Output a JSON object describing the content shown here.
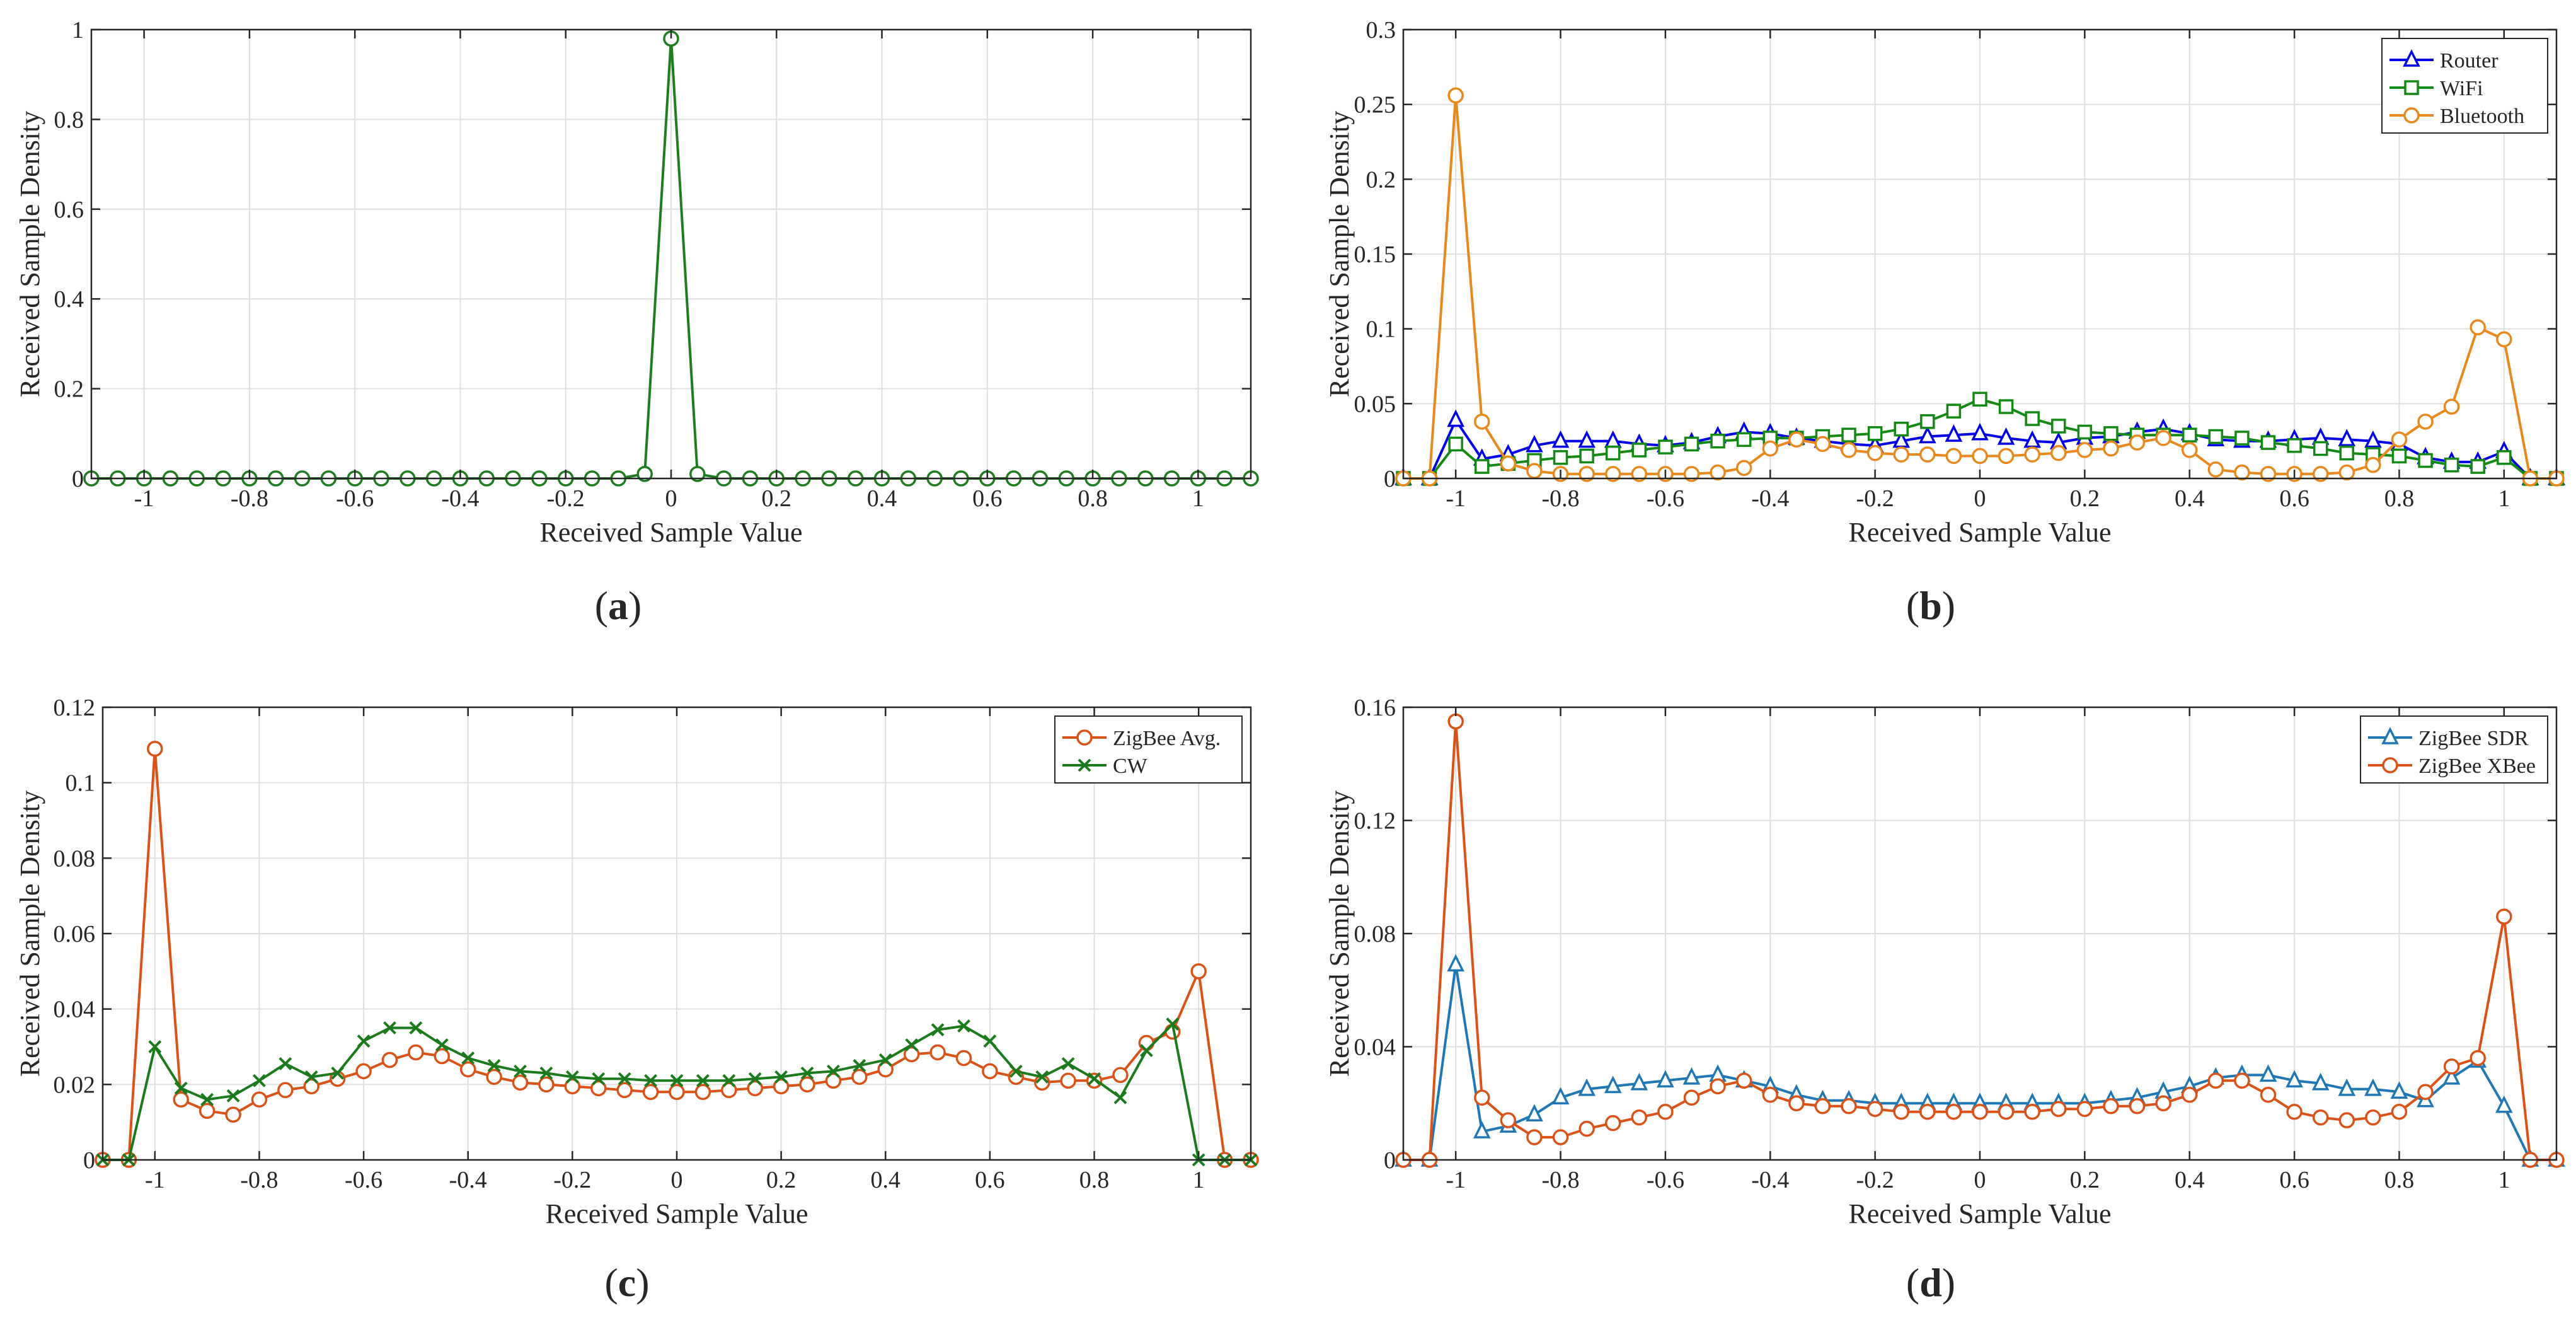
{
  "chart_data": [
    {
      "type": "line",
      "panel_label": "a",
      "xlabel": "Received Sample Value",
      "ylabel": "Received Sample Density",
      "xlim": [
        -1.1,
        1.1
      ],
      "ylim": [
        0,
        1
      ],
      "xticks": [
        -1,
        -0.8,
        -0.6,
        -0.4,
        -0.2,
        0,
        0.2,
        0.4,
        0.6,
        0.8,
        1
      ],
      "xtick_labels": [
        "-1",
        "-0.8",
        "-0.6",
        "-0.4",
        "-0.2",
        "0",
        "0.2",
        "0.4",
        "0.6",
        "0.8",
        "1"
      ],
      "yticks": [
        0,
        0.2,
        0.4,
        0.6,
        0.8,
        1
      ],
      "ytick_labels": [
        "0",
        "0.2",
        "0.4",
        "0.6",
        "0.8",
        "1"
      ],
      "grid": true,
      "legend": null,
      "x": [
        -1.1,
        -1.05,
        -1.0,
        -0.95,
        -0.9,
        -0.85,
        -0.8,
        -0.75,
        -0.7,
        -0.65,
        -0.6,
        -0.55,
        -0.5,
        -0.45,
        -0.4,
        -0.35,
        -0.3,
        -0.25,
        -0.2,
        -0.15,
        -0.1,
        -0.05,
        0.0,
        0.05,
        0.1,
        0.15,
        0.2,
        0.25,
        0.3,
        0.35,
        0.4,
        0.45,
        0.5,
        0.55,
        0.6,
        0.65,
        0.7,
        0.75,
        0.8,
        0.85,
        0.9,
        0.95,
        1.0,
        1.05,
        1.1
      ],
      "series": [
        {
          "name": "",
          "color": "#1e7d1e",
          "marker": "circle",
          "values": [
            0,
            0,
            0,
            0,
            0,
            0,
            0,
            0,
            0,
            0,
            0,
            0,
            0,
            0,
            0,
            0,
            0,
            0,
            0,
            0,
            0,
            0.01,
            0.98,
            0.01,
            0,
            0,
            0,
            0,
            0,
            0,
            0,
            0,
            0,
            0,
            0,
            0,
            0,
            0,
            0,
            0,
            0,
            0,
            0,
            0,
            0
          ]
        }
      ]
    },
    {
      "type": "line",
      "panel_label": "b",
      "xlabel": "Received Sample Value",
      "ylabel": "Received Sample Density",
      "xlim": [
        -1.1,
        1.1
      ],
      "ylim": [
        0,
        0.3
      ],
      "xticks": [
        -1,
        -0.8,
        -0.6,
        -0.4,
        -0.2,
        0,
        0.2,
        0.4,
        0.6,
        0.8,
        1
      ],
      "xtick_labels": [
        "-1",
        "-0.8",
        "-0.6",
        "-0.4",
        "-0.2",
        "0",
        "0.2",
        "0.4",
        "0.6",
        "0.8",
        "1"
      ],
      "yticks": [
        0,
        0.05,
        0.1,
        0.15,
        0.2,
        0.25,
        0.3
      ],
      "ytick_labels": [
        "0",
        "0.05",
        "0.1",
        "0.15",
        "0.2",
        "0.25",
        "0.3"
      ],
      "grid": true,
      "legend": "top-right",
      "x": [
        -1.1,
        -1.05,
        -1.0,
        -0.95,
        -0.9,
        -0.85,
        -0.8,
        -0.75,
        -0.7,
        -0.65,
        -0.6,
        -0.55,
        -0.5,
        -0.45,
        -0.4,
        -0.35,
        -0.3,
        -0.25,
        -0.2,
        -0.15,
        -0.1,
        -0.05,
        0.0,
        0.05,
        0.1,
        0.15,
        0.2,
        0.25,
        0.3,
        0.35,
        0.4,
        0.45,
        0.5,
        0.55,
        0.6,
        0.65,
        0.7,
        0.75,
        0.8,
        0.85,
        0.9,
        0.95,
        1.0,
        1.05,
        1.1
      ],
      "series": [
        {
          "name": "Router",
          "color": "#0000e6",
          "marker": "triangle",
          "values": [
            0,
            0,
            0.039,
            0.013,
            0.016,
            0.022,
            0.025,
            0.025,
            0.025,
            0.023,
            0.022,
            0.024,
            0.028,
            0.031,
            0.03,
            0.027,
            0.025,
            0.023,
            0.022,
            0.025,
            0.028,
            0.029,
            0.03,
            0.027,
            0.025,
            0.024,
            0.027,
            0.028,
            0.031,
            0.033,
            0.03,
            0.026,
            0.025,
            0.025,
            0.026,
            0.027,
            0.026,
            0.025,
            0.023,
            0.014,
            0.011,
            0.011,
            0.018,
            0,
            0
          ]
        },
        {
          "name": "WiFi",
          "color": "#138a13",
          "marker": "square",
          "values": [
            0,
            0,
            0.023,
            0.008,
            0.01,
            0.012,
            0.014,
            0.015,
            0.017,
            0.019,
            0.021,
            0.023,
            0.025,
            0.026,
            0.027,
            0.027,
            0.028,
            0.029,
            0.03,
            0.033,
            0.038,
            0.045,
            0.053,
            0.048,
            0.04,
            0.035,
            0.031,
            0.03,
            0.029,
            0.029,
            0.029,
            0.028,
            0.027,
            0.024,
            0.022,
            0.02,
            0.017,
            0.016,
            0.015,
            0.012,
            0.009,
            0.008,
            0.014,
            0,
            0
          ]
        },
        {
          "name": "Bluetooth",
          "color": "#e8891e",
          "marker": "circle",
          "values": [
            0,
            0,
            0.256,
            0.038,
            0.01,
            0.005,
            0.003,
            0.003,
            0.003,
            0.003,
            0.003,
            0.003,
            0.004,
            0.007,
            0.02,
            0.026,
            0.023,
            0.019,
            0.017,
            0.016,
            0.016,
            0.015,
            0.015,
            0.015,
            0.016,
            0.017,
            0.019,
            0.02,
            0.024,
            0.027,
            0.019,
            0.006,
            0.004,
            0.003,
            0.003,
            0.003,
            0.004,
            0.009,
            0.026,
            0.038,
            0.048,
            0.101,
            0.093,
            0,
            0
          ]
        }
      ]
    },
    {
      "type": "line",
      "panel_label": "c",
      "xlabel": "Received Sample Value",
      "ylabel": "Received Sample Density",
      "xlim": [
        -1.1,
        1.1
      ],
      "ylim": [
        0,
        0.12
      ],
      "xticks": [
        -1,
        -0.8,
        -0.6,
        -0.4,
        -0.2,
        0,
        0.2,
        0.4,
        0.6,
        0.8,
        1
      ],
      "xtick_labels": [
        "-1",
        "-0.8",
        "-0.6",
        "-0.4",
        "-0.2",
        "0",
        "0.2",
        "0.4",
        "0.6",
        "0.8",
        "1"
      ],
      "yticks": [
        0,
        0.02,
        0.04,
        0.06,
        0.08,
        0.1,
        0.12
      ],
      "ytick_labels": [
        "0",
        "0.02",
        "0.04",
        "0.06",
        "0.08",
        "0.1",
        "0.12"
      ],
      "grid": true,
      "legend": "top-right",
      "x": [
        -1.1,
        -1.05,
        -1.0,
        -0.95,
        -0.9,
        -0.85,
        -0.8,
        -0.75,
        -0.7,
        -0.65,
        -0.6,
        -0.55,
        -0.5,
        -0.45,
        -0.4,
        -0.35,
        -0.3,
        -0.25,
        -0.2,
        -0.15,
        -0.1,
        -0.05,
        0.0,
        0.05,
        0.1,
        0.15,
        0.2,
        0.25,
        0.3,
        0.35,
        0.4,
        0.45,
        0.5,
        0.55,
        0.6,
        0.65,
        0.7,
        0.75,
        0.8,
        0.85,
        0.9,
        0.95,
        1.0,
        1.05,
        1.1
      ],
      "series": [
        {
          "name": "ZigBee Avg.",
          "color": "#d95319",
          "marker": "circle",
          "values": [
            0,
            0,
            0.109,
            0.016,
            0.013,
            0.012,
            0.016,
            0.0185,
            0.0195,
            0.0215,
            0.0235,
            0.0265,
            0.0285,
            0.0275,
            0.024,
            0.022,
            0.0205,
            0.02,
            0.0195,
            0.019,
            0.0185,
            0.018,
            0.018,
            0.018,
            0.0185,
            0.019,
            0.0195,
            0.02,
            0.021,
            0.022,
            0.024,
            0.028,
            0.0285,
            0.027,
            0.0235,
            0.022,
            0.0205,
            0.021,
            0.021,
            0.0225,
            0.031,
            0.034,
            0.05,
            0,
            0
          ]
        },
        {
          "name": "CW",
          "color": "#1b7a1b",
          "marker": "x",
          "values": [
            0,
            0,
            0.03,
            0.019,
            0.016,
            0.017,
            0.021,
            0.0255,
            0.022,
            0.023,
            0.0315,
            0.035,
            0.035,
            0.0305,
            0.027,
            0.025,
            0.0235,
            0.023,
            0.022,
            0.0215,
            0.0215,
            0.021,
            0.021,
            0.021,
            0.021,
            0.0215,
            0.022,
            0.023,
            0.0235,
            0.025,
            0.0265,
            0.0305,
            0.0345,
            0.0355,
            0.0315,
            0.0235,
            0.022,
            0.0255,
            0.0215,
            0.0165,
            0.029,
            0.036,
            0,
            0,
            0
          ]
        }
      ]
    },
    {
      "type": "line",
      "panel_label": "d",
      "xlabel": "Received Sample Value",
      "ylabel": "Received Sample Density",
      "xlim": [
        -1.1,
        1.1
      ],
      "ylim": [
        0,
        0.16
      ],
      "xticks": [
        -1,
        -0.8,
        -0.6,
        -0.4,
        -0.2,
        0,
        0.2,
        0.4,
        0.6,
        0.8,
        1
      ],
      "xtick_labels": [
        "-1",
        "-0.8",
        "-0.6",
        "-0.4",
        "-0.2",
        "0",
        "0.2",
        "0.4",
        "0.6",
        "0.8",
        "1"
      ],
      "yticks": [
        0,
        0.04,
        0.08,
        0.12,
        0.16
      ],
      "ytick_labels": [
        "0",
        "0.04",
        "0.08",
        "0.12",
        "0.16"
      ],
      "grid": true,
      "legend": "top-right",
      "x": [
        -1.1,
        -1.05,
        -1.0,
        -0.95,
        -0.9,
        -0.85,
        -0.8,
        -0.75,
        -0.7,
        -0.65,
        -0.6,
        -0.55,
        -0.5,
        -0.45,
        -0.4,
        -0.35,
        -0.3,
        -0.25,
        -0.2,
        -0.15,
        -0.1,
        -0.05,
        0.0,
        0.05,
        0.1,
        0.15,
        0.2,
        0.25,
        0.3,
        0.35,
        0.4,
        0.45,
        0.5,
        0.55,
        0.6,
        0.65,
        0.7,
        0.75,
        0.8,
        0.85,
        0.9,
        0.95,
        1.0,
        1.05,
        1.1
      ],
      "series": [
        {
          "name": "ZigBee SDR",
          "color": "#1f77b4",
          "marker": "triangle",
          "values": [
            0,
            0,
            0.069,
            0.01,
            0.012,
            0.016,
            0.022,
            0.025,
            0.026,
            0.027,
            0.028,
            0.029,
            0.03,
            0.028,
            0.026,
            0.023,
            0.021,
            0.021,
            0.02,
            0.02,
            0.02,
            0.02,
            0.02,
            0.02,
            0.02,
            0.02,
            0.02,
            0.021,
            0.022,
            0.024,
            0.026,
            0.029,
            0.03,
            0.03,
            0.028,
            0.027,
            0.025,
            0.025,
            0.024,
            0.021,
            0.029,
            0.035,
            0.019,
            0,
            0
          ]
        },
        {
          "name": "ZigBee XBee",
          "color": "#d95319",
          "marker": "circle",
          "values": [
            0,
            0,
            0.155,
            0.022,
            0.014,
            0.008,
            0.008,
            0.011,
            0.013,
            0.015,
            0.017,
            0.022,
            0.026,
            0.028,
            0.023,
            0.02,
            0.019,
            0.019,
            0.018,
            0.017,
            0.017,
            0.017,
            0.017,
            0.017,
            0.017,
            0.018,
            0.018,
            0.019,
            0.019,
            0.02,
            0.023,
            0.028,
            0.028,
            0.023,
            0.017,
            0.015,
            0.014,
            0.015,
            0.017,
            0.024,
            0.033,
            0.036,
            0.086,
            0,
            0
          ]
        }
      ]
    }
  ]
}
